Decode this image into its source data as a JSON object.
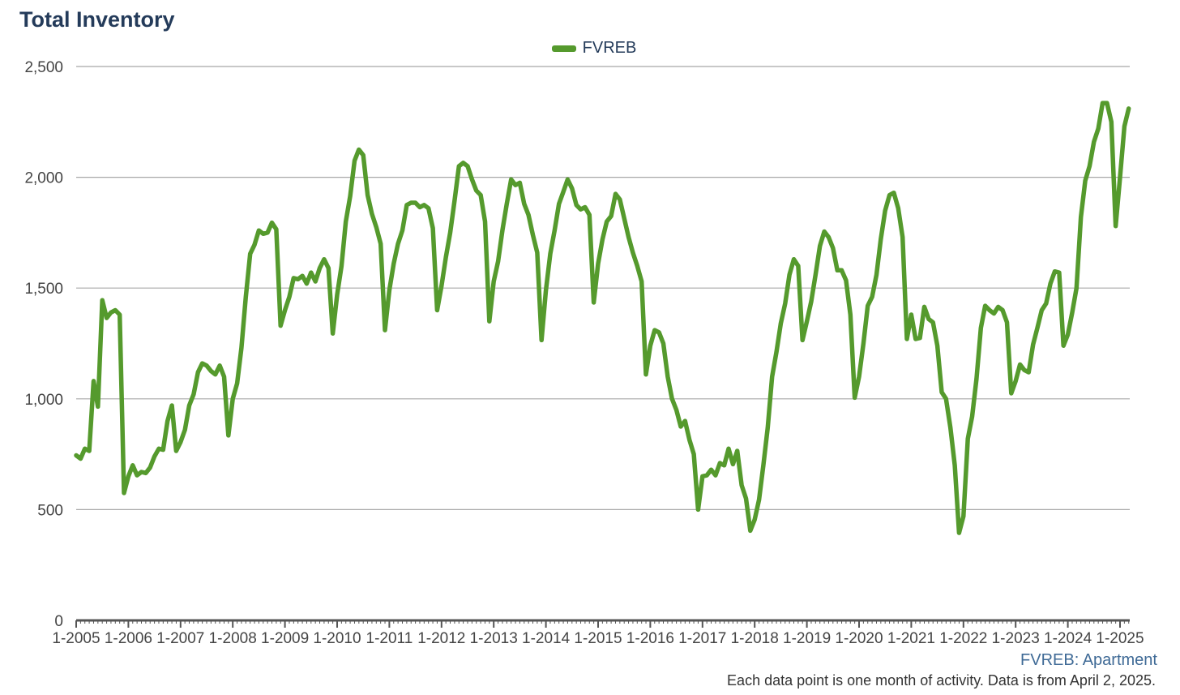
{
  "title": "Total Inventory",
  "source": "FVREB: Apartment",
  "note": "Each data point is one month of activity. Data is from April 2, 2025.",
  "colors": {
    "series": "#559a2d",
    "grid": "#a8a8a8",
    "axis": "#555555",
    "title": "#243b5a"
  },
  "chart_data": {
    "type": "line",
    "title": "Total Inventory",
    "xlabel": "",
    "ylabel": "",
    "ylim": [
      0,
      2500
    ],
    "y_ticks": [
      "0",
      "500",
      "1,000",
      "1,500",
      "2,000",
      "2,500"
    ],
    "x_tick_labels": [
      "1-2005",
      "1-2006",
      "1-2007",
      "1-2008",
      "1-2009",
      "1-2010",
      "1-2011",
      "1-2012",
      "1-2013",
      "1-2014",
      "1-2015",
      "1-2016",
      "1-2017",
      "1-2018",
      "1-2019",
      "1-2020",
      "1-2021",
      "1-2022",
      "1-2023",
      "1-2024",
      "1-2025"
    ],
    "grid": true,
    "legend": "top-center",
    "series": [
      {
        "name": "FVREB",
        "start": "2005-01",
        "values": [
          745,
          730,
          775,
          765,
          1080,
          965,
          1445,
          1365,
          1390,
          1400,
          1380,
          575,
          650,
          700,
          655,
          670,
          665,
          690,
          740,
          775,
          770,
          900,
          970,
          765,
          805,
          860,
          970,
          1020,
          1120,
          1160,
          1150,
          1125,
          1110,
          1150,
          1100,
          835,
          1000,
          1070,
          1230,
          1460,
          1655,
          1695,
          1760,
          1745,
          1750,
          1795,
          1765,
          1330,
          1400,
          1460,
          1545,
          1540,
          1555,
          1520,
          1570,
          1530,
          1590,
          1630,
          1590,
          1295,
          1470,
          1600,
          1800,
          1915,
          2075,
          2125,
          2100,
          1920,
          1835,
          1775,
          1700,
          1310,
          1490,
          1610,
          1700,
          1760,
          1875,
          1885,
          1885,
          1865,
          1875,
          1860,
          1770,
          1400,
          1510,
          1640,
          1750,
          1895,
          2050,
          2065,
          2050,
          1990,
          1940,
          1920,
          1800,
          1350,
          1530,
          1620,
          1760,
          1880,
          1990,
          1965,
          1975,
          1880,
          1830,
          1740,
          1660,
          1265,
          1490,
          1655,
          1760,
          1880,
          1935,
          1990,
          1950,
          1875,
          1855,
          1865,
          1830,
          1435,
          1610,
          1720,
          1800,
          1825,
          1925,
          1900,
          1815,
          1730,
          1660,
          1600,
          1530,
          1110,
          1240,
          1310,
          1300,
          1250,
          1100,
          1000,
          950,
          875,
          900,
          815,
          750,
          500,
          650,
          655,
          680,
          655,
          710,
          700,
          775,
          705,
          765,
          610,
          550,
          405,
          455,
          545,
          700,
          870,
          1100,
          1210,
          1340,
          1430,
          1560,
          1630,
          1600,
          1265,
          1350,
          1440,
          1560,
          1690,
          1755,
          1730,
          1680,
          1580,
          1580,
          1535,
          1380,
          1005,
          1100,
          1250,
          1420,
          1460,
          1560,
          1720,
          1850,
          1920,
          1930,
          1860,
          1730,
          1270,
          1380,
          1270,
          1275,
          1415,
          1360,
          1345,
          1240,
          1030,
          1000,
          870,
          700,
          395,
          470,
          820,
          920,
          1090,
          1320,
          1420,
          1400,
          1385,
          1415,
          1400,
          1345,
          1025,
          1080,
          1155,
          1130,
          1120,
          1245,
          1320,
          1400,
          1430,
          1520,
          1575,
          1570,
          1240,
          1290,
          1390,
          1500,
          1820,
          1985,
          2050,
          2160,
          2220,
          2335,
          2335,
          2250,
          1780,
          2000,
          2230,
          2310
        ]
      }
    ]
  }
}
